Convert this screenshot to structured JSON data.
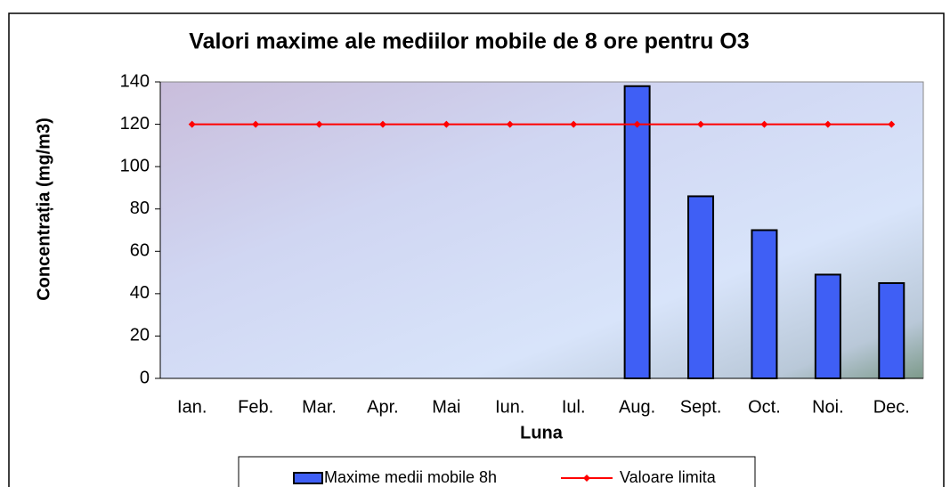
{
  "chart_data": {
    "type": "bar",
    "title": "Valori maxime ale mediilor mobile de 8 ore pentru O3",
    "x_label": "Luna",
    "y_label": "Concentrația  (mg/m3)",
    "categories": [
      "Ian.",
      "Feb.",
      "Mar.",
      "Apr.",
      "Mai",
      "Iun.",
      "Iul.",
      "Aug.",
      "Sept.",
      "Oct.",
      "Noi.",
      "Dec."
    ],
    "series": [
      {
        "name": "Maxime medii mobile 8h",
        "color": "#3f5ff5",
        "type": "bar",
        "values": [
          null,
          null,
          null,
          null,
          null,
          null,
          null,
          138,
          86,
          70,
          49,
          45
        ]
      },
      {
        "name": "Valoare limita",
        "color": "#ff0000",
        "type": "line",
        "values": [
          120,
          120,
          120,
          120,
          120,
          120,
          120,
          120,
          120,
          120,
          120,
          120
        ]
      }
    ],
    "ylim": [
      0,
      140
    ],
    "yticks": [
      0,
      20,
      40,
      60,
      80,
      100,
      120,
      140
    ],
    "legend": "bottom"
  }
}
